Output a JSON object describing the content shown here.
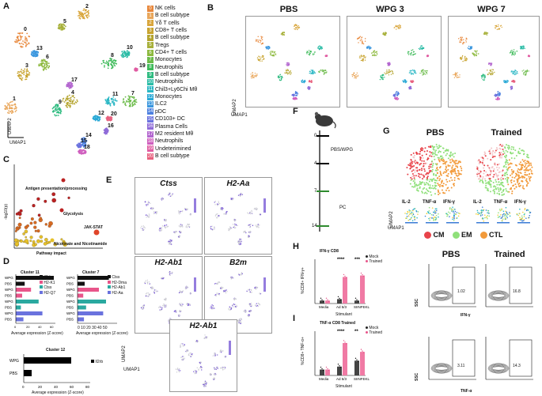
{
  "panels": {
    "A": "A",
    "B": "B",
    "C": "C",
    "D": "D",
    "E": "E",
    "F": "F",
    "G": "G",
    "H": "H",
    "I": "I"
  },
  "panelA": {
    "umap1": "UMAP1",
    "umap2": "UMAP2",
    "legend": [
      {
        "num": "0",
        "label": "NK cells",
        "color": "#e8873a"
      },
      {
        "num": "1",
        "label": "B cell subtype",
        "color": "#e9a65a"
      },
      {
        "num": "2",
        "label": "Yδ T cells",
        "color": "#d9a63c"
      },
      {
        "num": "3",
        "label": "CD8+ T cells",
        "color": "#c8a32e"
      },
      {
        "num": "4",
        "label": "B cell subtype",
        "color": "#b4a42e"
      },
      {
        "num": "5",
        "label": "Tregs",
        "color": "#a7b03a"
      },
      {
        "num": "6",
        "label": "CD4+ T cells",
        "color": "#8db93e"
      },
      {
        "num": "7",
        "label": "Monocytes",
        "color": "#6cbb4a"
      },
      {
        "num": "8",
        "label": "Neutrophils",
        "color": "#3fbb5a"
      },
      {
        "num": "9",
        "label": "B cell subtype",
        "color": "#2fbb80"
      },
      {
        "num": "10",
        "label": "Neutrophils",
        "color": "#2bbca6"
      },
      {
        "num": "11",
        "label": "Chil3+Ly6Chi Mθ",
        "color": "#2ab7c4"
      },
      {
        "num": "12",
        "label": "Monocytes",
        "color": "#2aa9d6"
      },
      {
        "num": "13",
        "label": "ILC2",
        "color": "#3a96de"
      },
      {
        "num": "14",
        "label": "pDC",
        "color": "#4d80e0"
      },
      {
        "num": "15",
        "label": "CD103+ DC",
        "color": "#6a72de"
      },
      {
        "num": "16",
        "label": "Plasma Cells",
        "color": "#8f6bd8"
      },
      {
        "num": "17",
        "label": "M2 resident Mθ",
        "color": "#b366cf"
      },
      {
        "num": "18",
        "label": "Neutrophils",
        "color": "#cf5fbe"
      },
      {
        "num": "19",
        "label": "Undeterimined",
        "color": "#e05ca2"
      },
      {
        "num": "20",
        "label": "B cell subtype",
        "color": "#e8607e"
      }
    ],
    "cluster_labels": [
      {
        "id": "0"
      },
      {
        "id": "1"
      },
      {
        "id": "2"
      },
      {
        "id": "3"
      },
      {
        "id": "4"
      },
      {
        "id": "5"
      },
      {
        "id": "6"
      },
      {
        "id": "7"
      },
      {
        "id": "8"
      },
      {
        "id": "9"
      },
      {
        "id": "10"
      },
      {
        "id": "11"
      },
      {
        "id": "12"
      },
      {
        "id": "13"
      },
      {
        "id": "14"
      },
      {
        "id": "15"
      },
      {
        "id": "16"
      },
      {
        "id": "17"
      },
      {
        "id": "18"
      },
      {
        "id": "19"
      },
      {
        "id": "20"
      }
    ]
  },
  "panelB": {
    "titles": [
      "PBS",
      "WPG 3",
      "WPG 7"
    ],
    "umap1": "UMAP1",
    "umap2": "UMAP2"
  },
  "panelC": {
    "ylabel": "-log10(p)",
    "xlabel": "Pathway impact",
    "annotations": [
      "Antigen presentation/processing",
      "Glycolysis",
      "JAK-STAT",
      "Nicotinate and Nicotinamide"
    ]
  },
  "panelD": {
    "cluster11": {
      "title": "Cluster 11",
      "xlabel": "Average expression (Z-score)",
      "groups": [
        "WPG",
        "PBS",
        "WPG",
        "PBS",
        "WPG",
        "PBS",
        "WPG",
        "PBS"
      ],
      "legend": [
        "Il2rb",
        "H2-K1",
        "Ctss",
        "H2-Q7"
      ],
      "ticks": [
        "0",
        "20",
        "40",
        "60"
      ]
    },
    "cluster7": {
      "title": "Cluster 7",
      "xlabel": "Average expression (Z-score)",
      "groups": [
        "WPG",
        "PBS",
        "WPG",
        "PBS",
        "WPG",
        "PBS",
        "WPG",
        "PBS"
      ],
      "legend": [
        "Ctss",
        "H2-Dma",
        "H2-Ab1",
        "H2-Aa"
      ],
      "ticks": "0 10 20 30 40 50"
    },
    "cluster12": {
      "title": "Cluster 12",
      "xlabel": "Average expression (Z-score)",
      "groups": [
        "WPG",
        "PBS"
      ],
      "legend": [
        "Il2rb"
      ],
      "ticks": [
        "0",
        "20",
        "40",
        "60",
        "80"
      ]
    }
  },
  "panelE": {
    "genes": [
      "Ctss",
      "H2-Aa",
      "H2-Ab1",
      "B2m",
      "H2-Ab1"
    ],
    "umap1": "UMAP1",
    "umap2": "UMAP2"
  },
  "panelF": {
    "days": [
      "0",
      "4",
      "7",
      "14"
    ],
    "labels": [
      "PBS/WPG",
      "PC"
    ]
  },
  "panelG": {
    "titles": [
      "PBS",
      "Trained"
    ],
    "markers": [
      "IL-2",
      "TNF-α",
      "IFN-γ"
    ],
    "umap1": "UMAP1",
    "umap2": "UMAP2",
    "legend": [
      {
        "label": "CM",
        "color": "#e8434a"
      },
      {
        "label": "EM",
        "color": "#8fe07a"
      },
      {
        "label": "CTL",
        "color": "#f29a3a"
      }
    ]
  },
  "panelH": {
    "title": "IFN-γ CD8",
    "ylabel": "%CD8+ IFN-γ+",
    "xlabel": "Stimulant",
    "categories": [
      "Media",
      "Ad 5/3",
      "SIINFEKL"
    ],
    "legend": [
      "Mock",
      "Trained"
    ],
    "sig": [
      "****",
      "***"
    ],
    "flow_titles": [
      "PBS",
      "Trained"
    ],
    "flow_values": [
      "1.02",
      "16.8"
    ],
    "ssc": "SSC",
    "xaxis": "IFN-γ"
  },
  "panelI": {
    "title": "TNF-α CD8 Trained",
    "ylabel": "%CD8+ TNF-α+",
    "xlabel": "Stimulant",
    "categories": [
      "Media",
      "Ad 5/3",
      "SIINFEKL"
    ],
    "legend": [
      "Mock",
      "Trained"
    ],
    "sig": [
      "****",
      "**"
    ],
    "flow_values": [
      "3.11",
      "14.3"
    ],
    "ssc": "SSC",
    "xaxis": "TNF-α"
  },
  "chart_data": [
    {
      "type": "bar",
      "title": "IFN-γ CD8",
      "categories": [
        "Media",
        "Ad 5/3",
        "SIINFEKL"
      ],
      "series": [
        {
          "name": "Mock",
          "values": [
            2,
            3,
            2
          ]
        },
        {
          "name": "Trained",
          "values": [
            2,
            18,
            19
          ]
        }
      ],
      "ylim": [
        0,
        30
      ],
      "xlabel": "Stimulant",
      "ylabel": "%CD8+ IFN-γ+"
    },
    {
      "type": "bar",
      "title": "TNF-α CD8 Trained",
      "categories": [
        "Media",
        "Ad 5/3",
        "SIINFEKL"
      ],
      "series": [
        {
          "name": "Mock",
          "values": [
            2,
            3,
            5
          ]
        },
        {
          "name": "Trained",
          "values": [
            2,
            11,
            8
          ]
        }
      ],
      "ylim": [
        0,
        15
      ],
      "xlabel": "Stimulant",
      "ylabel": "%CD8+ TNF-α+"
    },
    {
      "type": "bar",
      "title": "Cluster 12",
      "categories": [
        "WPG",
        "PBS"
      ],
      "series": [
        {
          "name": "Il2rb",
          "values": [
            60,
            10
          ]
        }
      ],
      "xlabel": "Average expression (Z-score)"
    }
  ]
}
